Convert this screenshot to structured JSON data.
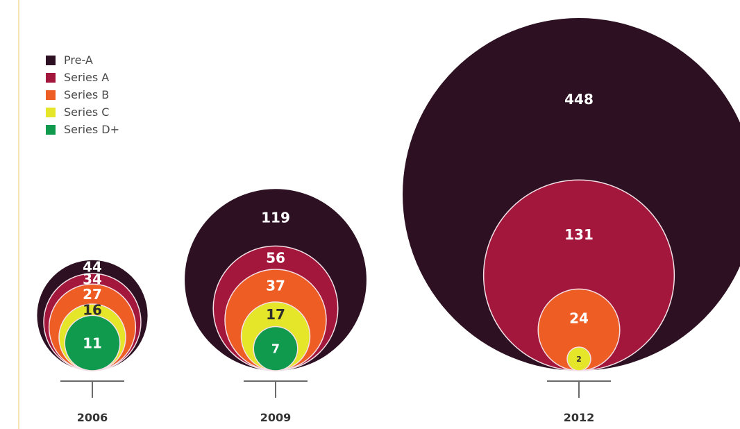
{
  "chart_data": {
    "type": "bubble",
    "legend": [
      {
        "name": "Pre-A",
        "color": "#2d1123"
      },
      {
        "name": "Series A",
        "color": "#a3173c"
      },
      {
        "name": "Series B",
        "color": "#ee5e24"
      },
      {
        "name": "Series C",
        "color": "#e5e52a"
      },
      {
        "name": "Series D+",
        "color": "#0f9a4e"
      }
    ],
    "years": [
      {
        "year": "2006",
        "values": [
          {
            "series": "Pre-A",
            "value": 44
          },
          {
            "series": "Series A",
            "value": 34
          },
          {
            "series": "Series B",
            "value": 27
          },
          {
            "series": "Series C",
            "value": 16
          },
          {
            "series": "Series D+",
            "value": 11
          }
        ]
      },
      {
        "year": "2009",
        "values": [
          {
            "series": "Pre-A",
            "value": 119
          },
          {
            "series": "Series A",
            "value": 56
          },
          {
            "series": "Series B",
            "value": 37
          },
          {
            "series": "Series C",
            "value": 17
          },
          {
            "series": "Series D+",
            "value": 7
          }
        ]
      },
      {
        "year": "2012",
        "values": [
          {
            "series": "Pre-A",
            "value": 448
          },
          {
            "series": "Series A",
            "value": 131
          },
          {
            "series": "Series B",
            "value": 24
          },
          {
            "series": "Series C",
            "value": 2
          }
        ]
      }
    ]
  }
}
